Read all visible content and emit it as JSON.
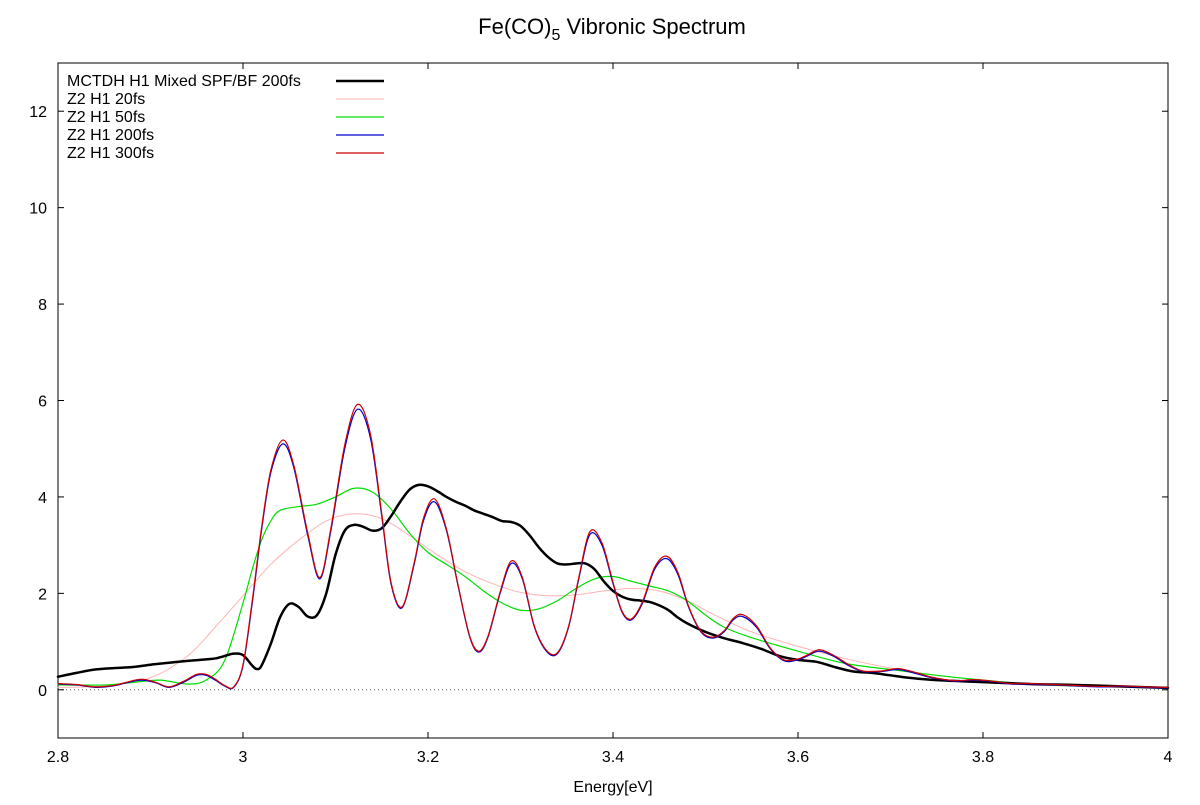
{
  "chart_data": {
    "type": "line",
    "title": "Fe(CO)",
    "title_subscript": "5",
    "title_suffix": " Vibronic Spectrum",
    "xlabel": "Energy[eV]",
    "ylabel": "",
    "xlim": [
      2.8,
      4.0
    ],
    "ylim": [
      -1,
      13
    ],
    "x_ticks": [
      2.8,
      3.0,
      3.2,
      3.4,
      3.6,
      3.8,
      4.0
    ],
    "x_tick_labels": [
      "2.8",
      "3",
      "3.2",
      "3.4",
      "3.6",
      "3.8",
      "4"
    ],
    "y_ticks": [
      0,
      2,
      4,
      6,
      8,
      10,
      12
    ],
    "y_tick_labels": [
      "0",
      "2",
      "4",
      "6",
      "8",
      "10",
      "12"
    ],
    "grid": false,
    "zero_line": true,
    "legend_position": "top-left",
    "series": [
      {
        "name": "MCTDH H1 Mixed SPF/BF 200fs",
        "color": "#000000",
        "width": 2.5,
        "x": [
          2.8,
          2.82,
          2.84,
          2.86,
          2.88,
          2.9,
          2.92,
          2.94,
          2.96,
          2.97,
          2.98,
          2.99,
          3.0,
          3.01,
          3.015,
          3.02,
          3.03,
          3.04,
          3.05,
          3.06,
          3.07,
          3.08,
          3.09,
          3.1,
          3.11,
          3.12,
          3.13,
          3.14,
          3.15,
          3.16,
          3.17,
          3.18,
          3.19,
          3.2,
          3.21,
          3.22,
          3.23,
          3.24,
          3.25,
          3.26,
          3.27,
          3.28,
          3.29,
          3.3,
          3.31,
          3.32,
          3.33,
          3.34,
          3.35,
          3.36,
          3.37,
          3.38,
          3.39,
          3.4,
          3.41,
          3.42,
          3.43,
          3.44,
          3.45,
          3.46,
          3.47,
          3.48,
          3.5,
          3.52,
          3.54,
          3.56,
          3.58,
          3.6,
          3.62,
          3.64,
          3.66,
          3.68,
          3.7,
          3.72,
          3.75,
          3.8,
          3.85,
          3.9,
          3.95,
          4.0
        ],
        "values": [
          0.27,
          0.35,
          0.42,
          0.45,
          0.47,
          0.52,
          0.56,
          0.6,
          0.63,
          0.65,
          0.7,
          0.75,
          0.72,
          0.5,
          0.43,
          0.5,
          0.95,
          1.5,
          1.78,
          1.72,
          1.52,
          1.55,
          2.0,
          2.8,
          3.3,
          3.42,
          3.38,
          3.3,
          3.35,
          3.6,
          3.9,
          4.15,
          4.25,
          4.22,
          4.12,
          4.0,
          3.9,
          3.82,
          3.72,
          3.65,
          3.58,
          3.5,
          3.48,
          3.4,
          3.2,
          2.95,
          2.75,
          2.62,
          2.6,
          2.62,
          2.62,
          2.5,
          2.25,
          2.05,
          1.93,
          1.87,
          1.85,
          1.82,
          1.75,
          1.65,
          1.5,
          1.38,
          1.2,
          1.07,
          0.97,
          0.85,
          0.7,
          0.62,
          0.58,
          0.47,
          0.38,
          0.35,
          0.3,
          0.25,
          0.2,
          0.16,
          0.12,
          0.1,
          0.07,
          0.04
        ]
      },
      {
        "name": "Z2 H1 20fs",
        "color": "#ffb3b3",
        "width": 1,
        "x": [
          2.8,
          2.85,
          2.9,
          2.94,
          2.97,
          3.0,
          3.03,
          3.06,
          3.09,
          3.12,
          3.15,
          3.18,
          3.21,
          3.24,
          3.27,
          3.3,
          3.33,
          3.36,
          3.39,
          3.42,
          3.45,
          3.48,
          3.51,
          3.55,
          3.6,
          3.65,
          3.7,
          3.75,
          3.8,
          3.85,
          3.9,
          3.95,
          4.0
        ],
        "values": [
          0.05,
          0.08,
          0.25,
          0.7,
          1.3,
          1.95,
          2.6,
          3.1,
          3.5,
          3.65,
          3.55,
          3.2,
          2.8,
          2.45,
          2.2,
          2.02,
          1.95,
          1.97,
          2.05,
          2.1,
          2.05,
          1.85,
          1.55,
          1.2,
          0.9,
          0.65,
          0.45,
          0.3,
          0.2,
          0.12,
          0.07,
          0.05,
          0.03
        ]
      },
      {
        "name": "Z2 H1 50fs",
        "color": "#00dd00",
        "width": 1.2,
        "x": [
          2.8,
          2.85,
          2.88,
          2.91,
          2.94,
          2.96,
          2.98,
          3.0,
          3.01,
          3.02,
          3.03,
          3.04,
          3.06,
          3.08,
          3.1,
          3.12,
          3.14,
          3.16,
          3.18,
          3.2,
          3.22,
          3.24,
          3.26,
          3.28,
          3.3,
          3.32,
          3.34,
          3.36,
          3.38,
          3.4,
          3.42,
          3.44,
          3.46,
          3.48,
          3.5,
          3.52,
          3.55,
          3.6,
          3.65,
          3.7,
          3.75,
          3.8,
          3.85,
          3.9,
          3.95,
          4.0
        ],
        "values": [
          0.1,
          0.1,
          0.15,
          0.2,
          0.12,
          0.2,
          0.6,
          1.8,
          2.5,
          3.1,
          3.5,
          3.72,
          3.8,
          3.85,
          4.0,
          4.18,
          4.1,
          3.75,
          3.25,
          2.85,
          2.6,
          2.35,
          2.05,
          1.8,
          1.65,
          1.68,
          1.85,
          2.1,
          2.3,
          2.35,
          2.25,
          2.15,
          2.05,
          1.85,
          1.55,
          1.3,
          1.08,
          0.8,
          0.55,
          0.42,
          0.3,
          0.2,
          0.12,
          0.08,
          0.06,
          0.05
        ]
      },
      {
        "name": "Z2 H1 200fs",
        "color": "#0000cc",
        "width": 1.2,
        "x": [
          2.8,
          2.82,
          2.84,
          2.86,
          2.875,
          2.89,
          2.905,
          2.92,
          2.935,
          2.95,
          2.96,
          2.97,
          2.98,
          2.99,
          3.0,
          3.01,
          3.02,
          3.03,
          3.043,
          3.055,
          3.07,
          3.083,
          3.095,
          3.11,
          3.124,
          3.138,
          3.15,
          3.16,
          3.172,
          3.185,
          3.195,
          3.207,
          3.22,
          3.232,
          3.245,
          3.255,
          3.265,
          3.278,
          3.29,
          3.302,
          3.315,
          3.328,
          3.34,
          3.352,
          3.363,
          3.375,
          3.388,
          3.4,
          3.41,
          3.42,
          3.432,
          3.445,
          3.458,
          3.47,
          3.482,
          3.495,
          3.508,
          3.52,
          3.53,
          3.54,
          3.555,
          3.57,
          3.585,
          3.6,
          3.61,
          3.623,
          3.638,
          3.655,
          3.67,
          3.69,
          3.708,
          3.725,
          3.745,
          3.77,
          3.79,
          3.81,
          3.83,
          3.85,
          3.875,
          3.9,
          3.925,
          3.95,
          3.975,
          4.0
        ],
        "values": [
          0.12,
          0.1,
          0.05,
          0.08,
          0.15,
          0.2,
          0.15,
          0.05,
          0.15,
          0.3,
          0.3,
          0.2,
          0.08,
          0.05,
          0.5,
          1.8,
          3.3,
          4.5,
          5.1,
          4.6,
          3.2,
          2.3,
          3.3,
          5.0,
          5.82,
          5.2,
          3.6,
          2.2,
          1.7,
          2.6,
          3.5,
          3.9,
          3.3,
          2.2,
          1.1,
          0.78,
          1.1,
          2.0,
          2.62,
          2.3,
          1.3,
          0.8,
          0.75,
          1.3,
          2.3,
          3.22,
          3.0,
          2.2,
          1.6,
          1.45,
          1.8,
          2.5,
          2.72,
          2.4,
          1.7,
          1.2,
          1.07,
          1.2,
          1.45,
          1.52,
          1.3,
          0.85,
          0.6,
          0.62,
          0.7,
          0.8,
          0.7,
          0.5,
          0.38,
          0.38,
          0.42,
          0.35,
          0.25,
          0.18,
          0.2,
          0.17,
          0.12,
          0.12,
          0.1,
          0.08,
          0.06,
          0.07,
          0.05,
          0.04
        ]
      },
      {
        "name": "Z2 H1 300fs",
        "color": "#cc0000",
        "width": 1.2,
        "x": [
          2.8,
          2.82,
          2.84,
          2.86,
          2.875,
          2.89,
          2.905,
          2.92,
          2.935,
          2.95,
          2.96,
          2.97,
          2.98,
          2.99,
          3.0,
          3.01,
          3.02,
          3.03,
          3.043,
          3.055,
          3.07,
          3.083,
          3.095,
          3.11,
          3.124,
          3.138,
          3.15,
          3.16,
          3.172,
          3.185,
          3.195,
          3.207,
          3.22,
          3.232,
          3.245,
          3.255,
          3.265,
          3.278,
          3.29,
          3.302,
          3.315,
          3.328,
          3.34,
          3.352,
          3.363,
          3.375,
          3.388,
          3.4,
          3.41,
          3.42,
          3.432,
          3.445,
          3.458,
          3.47,
          3.482,
          3.495,
          3.508,
          3.52,
          3.53,
          3.54,
          3.555,
          3.57,
          3.585,
          3.6,
          3.61,
          3.623,
          3.638,
          3.655,
          3.67,
          3.69,
          3.708,
          3.725,
          3.745,
          3.77,
          3.79,
          3.81,
          3.83,
          3.85,
          3.875,
          3.9,
          3.925,
          3.95,
          3.975,
          4.0
        ],
        "values": [
          0.13,
          0.11,
          0.06,
          0.09,
          0.16,
          0.22,
          0.16,
          0.06,
          0.17,
          0.32,
          0.32,
          0.22,
          0.09,
          0.06,
          0.52,
          1.85,
          3.35,
          4.55,
          5.18,
          4.65,
          3.25,
          2.33,
          3.35,
          5.08,
          5.92,
          5.28,
          3.65,
          2.23,
          1.72,
          2.63,
          3.55,
          3.96,
          3.33,
          2.22,
          1.12,
          0.8,
          1.12,
          2.03,
          2.67,
          2.33,
          1.32,
          0.82,
          0.77,
          1.32,
          2.33,
          3.28,
          3.05,
          2.23,
          1.62,
          1.47,
          1.83,
          2.54,
          2.77,
          2.44,
          1.72,
          1.22,
          1.09,
          1.22,
          1.48,
          1.56,
          1.33,
          0.87,
          0.62,
          0.64,
          0.72,
          0.83,
          0.72,
          0.52,
          0.39,
          0.39,
          0.44,
          0.37,
          0.26,
          0.19,
          0.21,
          0.18,
          0.13,
          0.13,
          0.11,
          0.09,
          0.07,
          0.08,
          0.06,
          0.05
        ]
      }
    ]
  }
}
